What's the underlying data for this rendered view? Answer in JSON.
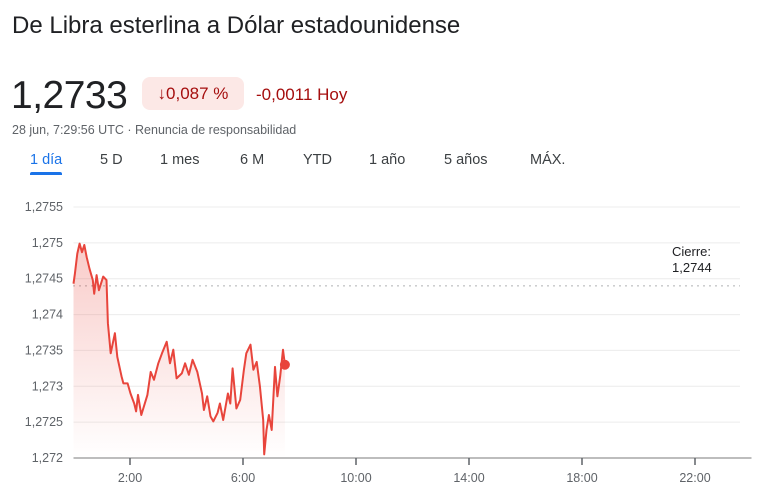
{
  "header": {
    "title": "De Libra esterlina a Dólar estadounidense",
    "price": "1,2733",
    "change_percent": "0,087 %",
    "change_arrow_icon": "arrow-down-icon",
    "change_value": "-0,0011 Hoy",
    "timestamp": "28 jun, 7:29:56 UTC",
    "separator": "·",
    "disclaimer": "Renuncia de responsabilidad"
  },
  "colors": {
    "negative": "#a50e0e",
    "negative_bg": "#fce8e6",
    "line": "#e8453c",
    "accent": "#1a73e8"
  },
  "tabs": [
    {
      "label": "1 día",
      "active": true
    },
    {
      "label": "5 D"
    },
    {
      "label": "1 mes"
    },
    {
      "label": "6 M"
    },
    {
      "label": "YTD"
    },
    {
      "label": "1 año"
    },
    {
      "label": "5 años"
    },
    {
      "label": "MÁX."
    }
  ],
  "chart_data": {
    "type": "area",
    "xlim": [
      "0:00",
      "24:00"
    ],
    "ylim": [
      1.272,
      1.2755
    ],
    "grid": true,
    "y_ticks": [
      "1,2755",
      "1,275",
      "1,2745",
      "1,274",
      "1,2735",
      "1,273",
      "1,2725",
      "1,272"
    ],
    "x_ticks": [
      "2:00",
      "6:00",
      "10:00",
      "14:00",
      "18:00",
      "22:00"
    ],
    "previous_close": {
      "label": "Cierre:",
      "value_label": "1,2744",
      "value": 1.2744
    },
    "current": {
      "time": "7:29",
      "value": 1.2733
    },
    "series": [
      {
        "x": [
          "0:00",
          "0:03",
          "0:08",
          "0:13",
          "0:18",
          "0:23",
          "0:28",
          "0:34",
          "0:41",
          "0:44",
          "0:49",
          "0:54",
          "1:03",
          "1:10",
          "1:13",
          "1:19",
          "1:28",
          "1:33",
          "1:42",
          "1:46",
          "1:55",
          "2:01",
          "2:09",
          "2:13",
          "2:17",
          "2:24",
          "2:37",
          "2:44",
          "2:51",
          "3:00",
          "3:08",
          "3:18",
          "3:25",
          "3:32",
          "3:39",
          "3:50",
          "3:57",
          "4:05",
          "4:13",
          "4:23",
          "4:33",
          "4:37",
          "4:44",
          "4:51",
          "4:57",
          "5:06",
          "5:11",
          "5:18",
          "5:28",
          "5:33",
          "5:38",
          "5:46",
          "5:54",
          "6:02",
          "6:07",
          "6:16",
          "6:22",
          "6:29",
          "6:36",
          "6:43",
          "6:45",
          "6:50",
          "6:55",
          "7:01",
          "7:08",
          "7:13",
          "7:19",
          "7:25",
          "7:29"
        ],
        "y": [
          1.27443,
          1.27457,
          1.27485,
          1.27499,
          1.27487,
          1.27497,
          1.2748,
          1.27464,
          1.27448,
          1.27429,
          1.27455,
          1.27434,
          1.27453,
          1.27448,
          1.27388,
          1.27346,
          1.27374,
          1.27341,
          1.27314,
          1.27304,
          1.27304,
          1.2729,
          1.27276,
          1.27265,
          1.27288,
          1.2726,
          1.27288,
          1.2732,
          1.27309,
          1.27332,
          1.27346,
          1.27362,
          1.27332,
          1.27351,
          1.27311,
          1.27318,
          1.27332,
          1.27316,
          1.27337,
          1.2732,
          1.2729,
          1.27267,
          1.27286,
          1.27258,
          1.27251,
          1.27263,
          1.27276,
          1.27253,
          1.2729,
          1.27276,
          1.27325,
          1.27269,
          1.27281,
          1.27323,
          1.27346,
          1.27358,
          1.27323,
          1.27334,
          1.273,
          1.27253,
          1.27205,
          1.27239,
          1.2726,
          1.27239,
          1.27327,
          1.27286,
          1.27314,
          1.27351,
          1.2733
        ]
      }
    ]
  }
}
